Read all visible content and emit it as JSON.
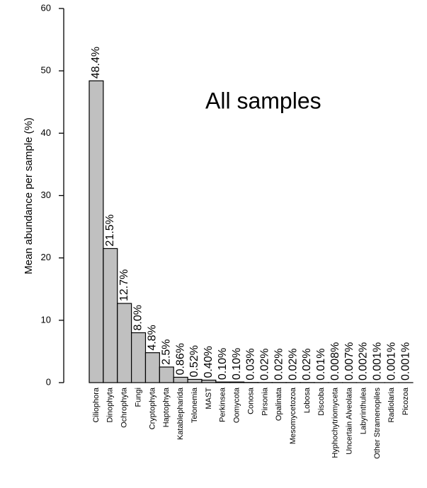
{
  "chart_data": {
    "type": "bar",
    "ylabel": "Mean abundance per sample (%)",
    "annotation": "All samples",
    "categories": [
      "Ciliophora",
      "Dinophyta",
      "Ochrophyta",
      "Fungi",
      "Cryptophyta",
      "Haptophyta",
      "Katablepharida",
      "Telonemia",
      "MAST",
      "Perkinsea",
      "Oomycota",
      "Conosa",
      "Pirsonia",
      "Opalinata",
      "Mesomycetozoa",
      "Lobosa",
      "Discoba",
      "Hyphochytriomyceta",
      "Uncertain Alveolata",
      "Labyrinthulea",
      "Other Stramenopiles",
      "Radiolaria",
      "Picozoa"
    ],
    "values": [
      48.4,
      21.5,
      12.7,
      8.0,
      4.8,
      2.5,
      0.86,
      0.52,
      0.4,
      0.1,
      0.1,
      0.03,
      0.02,
      0.02,
      0.02,
      0.02,
      0.01,
      0.008,
      0.007,
      0.002,
      0.001,
      0.001,
      0.001
    ],
    "value_labels": [
      "48.4%",
      "21.5%",
      "12.7%",
      "8.0%",
      "4.8%",
      "2.5%",
      "0.86%",
      "0.52%",
      "0.40%",
      "0.10%",
      "0.10%",
      "0.03%",
      "0.02%",
      "0.02%",
      "0.02%",
      "0.02%",
      "0.01%",
      "0.008%",
      "0.007%",
      "0.002%",
      "0.001%",
      "0.001%",
      "0.001%"
    ],
    "color": "#c0c0c0",
    "ylim": [
      0,
      60
    ],
    "yticks": [
      0,
      10,
      20,
      30,
      40,
      50,
      60
    ]
  }
}
